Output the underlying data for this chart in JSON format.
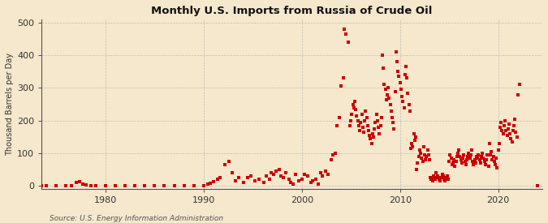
{
  "title": "Monthly U.S. Imports from Russia of Crude Oil",
  "ylabel": "Thousand Barrels per Day",
  "source": "Source: U.S. Energy Information Administration",
  "background_color": "#f5e8cc",
  "dot_color": "#cc0000",
  "xlim": [
    1973.5,
    2024.5
  ],
  "ylim": [
    -8,
    510
  ],
  "yticks": [
    0,
    100,
    200,
    300,
    400,
    500
  ],
  "xticks": [
    1980,
    1990,
    2000,
    2010,
    2020
  ],
  "data": [
    [
      1973.5,
      0
    ],
    [
      1974.0,
      0
    ],
    [
      1975.0,
      0
    ],
    [
      1976.0,
      0
    ],
    [
      1976.5,
      2
    ],
    [
      1977.0,
      10
    ],
    [
      1977.4,
      12
    ],
    [
      1977.7,
      5
    ],
    [
      1978.0,
      3
    ],
    [
      1978.5,
      0
    ],
    [
      1979.0,
      0
    ],
    [
      1980.0,
      0
    ],
    [
      1981.0,
      0
    ],
    [
      1982.0,
      0
    ],
    [
      1983.0,
      0
    ],
    [
      1984.0,
      0
    ],
    [
      1985.0,
      0
    ],
    [
      1986.0,
      0
    ],
    [
      1987.0,
      0
    ],
    [
      1988.0,
      0
    ],
    [
      1989.0,
      0
    ],
    [
      1990.0,
      0
    ],
    [
      1990.4,
      5
    ],
    [
      1990.7,
      8
    ],
    [
      1991.0,
      12
    ],
    [
      1991.4,
      20
    ],
    [
      1991.7,
      25
    ],
    [
      1992.2,
      65
    ],
    [
      1992.6,
      75
    ],
    [
      1992.9,
      40
    ],
    [
      1993.2,
      15
    ],
    [
      1993.6,
      25
    ],
    [
      1994.1,
      10
    ],
    [
      1994.5,
      25
    ],
    [
      1994.8,
      30
    ],
    [
      1995.2,
      15
    ],
    [
      1995.6,
      20
    ],
    [
      1996.1,
      10
    ],
    [
      1996.4,
      30
    ],
    [
      1996.7,
      20
    ],
    [
      1996.9,
      40
    ],
    [
      1997.1,
      35
    ],
    [
      1997.4,
      45
    ],
    [
      1997.7,
      50
    ],
    [
      1997.9,
      30
    ],
    [
      1998.1,
      25
    ],
    [
      1998.4,
      40
    ],
    [
      1998.7,
      20
    ],
    [
      1998.9,
      10
    ],
    [
      1999.1,
      5
    ],
    [
      1999.4,
      35
    ],
    [
      1999.7,
      15
    ],
    [
      2000.0,
      20
    ],
    [
      2000.3,
      35
    ],
    [
      2000.6,
      30
    ],
    [
      2000.9,
      10
    ],
    [
      2001.1,
      15
    ],
    [
      2001.4,
      20
    ],
    [
      2001.7,
      5
    ],
    [
      2001.9,
      40
    ],
    [
      2002.1,
      30
    ],
    [
      2002.4,
      45
    ],
    [
      2002.7,
      35
    ],
    [
      2003.0,
      80
    ],
    [
      2003.2,
      95
    ],
    [
      2003.4,
      100
    ],
    [
      2003.6,
      185
    ],
    [
      2003.8,
      210
    ],
    [
      2004.0,
      305
    ],
    [
      2004.2,
      330
    ],
    [
      2004.3,
      480
    ],
    [
      2004.5,
      465
    ],
    [
      2004.7,
      440
    ],
    [
      2004.9,
      185
    ],
    [
      2005.0,
      200
    ],
    [
      2005.1,
      220
    ],
    [
      2005.2,
      250
    ],
    [
      2005.3,
      240
    ],
    [
      2005.4,
      260
    ],
    [
      2005.5,
      235
    ],
    [
      2005.6,
      215
    ],
    [
      2005.7,
      200
    ],
    [
      2005.8,
      185
    ],
    [
      2005.9,
      170
    ],
    [
      2006.0,
      195
    ],
    [
      2006.1,
      220
    ],
    [
      2006.2,
      180
    ],
    [
      2006.3,
      165
    ],
    [
      2006.4,
      200
    ],
    [
      2006.5,
      230
    ],
    [
      2006.6,
      210
    ],
    [
      2006.7,
      185
    ],
    [
      2006.8,
      170
    ],
    [
      2006.9,
      155
    ],
    [
      2007.0,
      145
    ],
    [
      2007.1,
      130
    ],
    [
      2007.2,
      160
    ],
    [
      2007.3,
      150
    ],
    [
      2007.4,
      175
    ],
    [
      2007.5,
      195
    ],
    [
      2007.6,
      220
    ],
    [
      2007.7,
      200
    ],
    [
      2007.8,
      180
    ],
    [
      2007.9,
      160
    ],
    [
      2008.0,
      185
    ],
    [
      2008.1,
      210
    ],
    [
      2008.2,
      400
    ],
    [
      2008.3,
      360
    ],
    [
      2008.4,
      310
    ],
    [
      2008.5,
      295
    ],
    [
      2008.6,
      265
    ],
    [
      2008.7,
      280
    ],
    [
      2008.8,
      300
    ],
    [
      2008.9,
      270
    ],
    [
      2009.0,
      250
    ],
    [
      2009.1,
      230
    ],
    [
      2009.2,
      210
    ],
    [
      2009.3,
      195
    ],
    [
      2009.4,
      175
    ],
    [
      2009.5,
      290
    ],
    [
      2009.6,
      410
    ],
    [
      2009.7,
      380
    ],
    [
      2009.8,
      350
    ],
    [
      2009.9,
      335
    ],
    [
      2010.0,
      315
    ],
    [
      2010.1,
      295
    ],
    [
      2010.2,
      275
    ],
    [
      2010.3,
      260
    ],
    [
      2010.4,
      240
    ],
    [
      2010.5,
      340
    ],
    [
      2010.6,
      365
    ],
    [
      2010.7,
      330
    ],
    [
      2010.8,
      285
    ],
    [
      2010.9,
      250
    ],
    [
      2011.0,
      230
    ],
    [
      2011.1,
      115
    ],
    [
      2011.2,
      130
    ],
    [
      2011.3,
      120
    ],
    [
      2011.4,
      160
    ],
    [
      2011.5,
      140
    ],
    [
      2011.6,
      150
    ],
    [
      2011.7,
      50
    ],
    [
      2011.8,
      70
    ],
    [
      2011.9,
      90
    ],
    [
      2012.0,
      110
    ],
    [
      2012.1,
      100
    ],
    [
      2012.2,
      85
    ],
    [
      2012.3,
      75
    ],
    [
      2012.4,
      120
    ],
    [
      2012.5,
      95
    ],
    [
      2012.6,
      80
    ],
    [
      2012.7,
      90
    ],
    [
      2012.8,
      110
    ],
    [
      2012.9,
      95
    ],
    [
      2013.0,
      80
    ],
    [
      2013.1,
      25
    ],
    [
      2013.2,
      20
    ],
    [
      2013.3,
      15
    ],
    [
      2013.4,
      30
    ],
    [
      2013.5,
      25
    ],
    [
      2013.6,
      20
    ],
    [
      2013.7,
      40
    ],
    [
      2013.8,
      30
    ],
    [
      2013.9,
      25
    ],
    [
      2014.0,
      20
    ],
    [
      2014.1,
      15
    ],
    [
      2014.2,
      25
    ],
    [
      2014.3,
      35
    ],
    [
      2014.4,
      30
    ],
    [
      2014.5,
      20
    ],
    [
      2014.6,
      15
    ],
    [
      2014.7,
      25
    ],
    [
      2014.8,
      30
    ],
    [
      2014.9,
      20
    ],
    [
      2015.0,
      75
    ],
    [
      2015.1,
      95
    ],
    [
      2015.2,
      85
    ],
    [
      2015.3,
      65
    ],
    [
      2015.4,
      70
    ],
    [
      2015.5,
      80
    ],
    [
      2015.6,
      60
    ],
    [
      2015.7,
      75
    ],
    [
      2015.8,
      90
    ],
    [
      2015.9,
      100
    ],
    [
      2016.0,
      110
    ],
    [
      2016.1,
      90
    ],
    [
      2016.2,
      80
    ],
    [
      2016.3,
      70
    ],
    [
      2016.4,
      85
    ],
    [
      2016.5,
      95
    ],
    [
      2016.6,
      75
    ],
    [
      2016.7,
      65
    ],
    [
      2016.8,
      80
    ],
    [
      2016.9,
      90
    ],
    [
      2017.0,
      100
    ],
    [
      2017.1,
      85
    ],
    [
      2017.2,
      95
    ],
    [
      2017.3,
      110
    ],
    [
      2017.4,
      75
    ],
    [
      2017.5,
      65
    ],
    [
      2017.6,
      80
    ],
    [
      2017.7,
      70
    ],
    [
      2017.8,
      90
    ],
    [
      2017.9,
      85
    ],
    [
      2018.0,
      95
    ],
    [
      2018.1,
      80
    ],
    [
      2018.2,
      70
    ],
    [
      2018.3,
      90
    ],
    [
      2018.4,
      100
    ],
    [
      2018.5,
      85
    ],
    [
      2018.6,
      75
    ],
    [
      2018.7,
      65
    ],
    [
      2018.8,
      80
    ],
    [
      2018.9,
      95
    ],
    [
      2019.0,
      60
    ],
    [
      2019.1,
      130
    ],
    [
      2019.2,
      95
    ],
    [
      2019.3,
      105
    ],
    [
      2019.4,
      80
    ],
    [
      2019.5,
      90
    ],
    [
      2019.6,
      75
    ],
    [
      2019.7,
      65
    ],
    [
      2019.8,
      85
    ],
    [
      2019.9,
      55
    ],
    [
      2020.0,
      110
    ],
    [
      2020.1,
      130
    ],
    [
      2020.2,
      180
    ],
    [
      2020.3,
      195
    ],
    [
      2020.4,
      170
    ],
    [
      2020.5,
      160
    ],
    [
      2020.6,
      185
    ],
    [
      2020.7,
      200
    ],
    [
      2020.8,
      170
    ],
    [
      2020.9,
      155
    ],
    [
      2021.0,
      175
    ],
    [
      2021.1,
      190
    ],
    [
      2021.2,
      160
    ],
    [
      2021.3,
      145
    ],
    [
      2021.4,
      135
    ],
    [
      2021.5,
      170
    ],
    [
      2021.6,
      185
    ],
    [
      2021.7,
      205
    ],
    [
      2021.8,
      165
    ],
    [
      2021.9,
      150
    ],
    [
      2022.0,
      280
    ],
    [
      2022.15,
      310
    ],
    [
      2024.0,
      0
    ]
  ]
}
